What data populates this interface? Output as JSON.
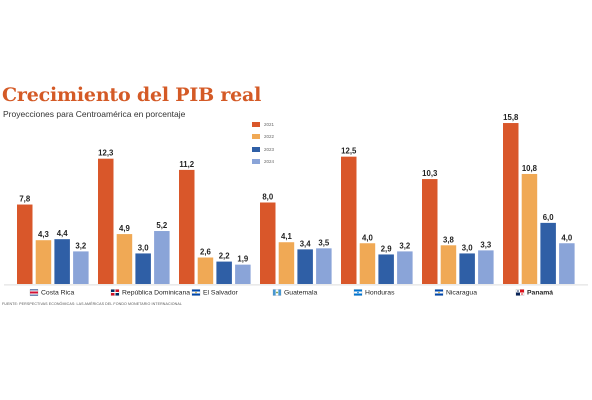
{
  "title": "Crecimiento del PIB real",
  "subtitle": "Proyecciones para Centroamérica en porcentaje",
  "source": "FUENTE: PERSPECTIVAS ECONÓMICAS: LAS AMÉRICAS DEL FONDO MONETARIO INTERNACIONAL",
  "colors": {
    "s2021": "#d9572a",
    "s2022": "#f0a955",
    "s2023": "#2f5fa6",
    "s2024": "#8aa4d8",
    "title": "#d45a26"
  },
  "legend": [
    {
      "label": "2021",
      "color": "#d9572a"
    },
    {
      "label": "2022",
      "color": "#f0a955"
    },
    {
      "label": "2023",
      "color": "#2f5fa6"
    },
    {
      "label": "2024",
      "color": "#8aa4d8"
    }
  ],
  "chart_data": {
    "type": "bar",
    "title": "Crecimiento del PIB real",
    "subtitle": "Proyecciones para Centroamérica en porcentaje",
    "categories": [
      "Costa Rica",
      "República Dominicana",
      "El Salvador",
      "Guatemala",
      "Honduras",
      "Nicaragua",
      "Panamá"
    ],
    "series": [
      {
        "name": "2021",
        "values": [
          7.8,
          12.3,
          11.2,
          8.0,
          12.5,
          10.3,
          15.8
        ]
      },
      {
        "name": "2022",
        "values": [
          4.3,
          4.9,
          2.6,
          4.1,
          4.0,
          3.8,
          10.8
        ]
      },
      {
        "name": "2023",
        "values": [
          4.4,
          3.0,
          2.2,
          3.4,
          2.9,
          3.0,
          6.0
        ]
      },
      {
        "name": "2024",
        "values": [
          3.2,
          5.2,
          1.9,
          3.5,
          3.2,
          3.3,
          4.0
        ]
      }
    ],
    "value_labels": [
      [
        "7,8",
        "12,3",
        "11,2",
        "8,0",
        "12,5",
        "10,3",
        "15,8"
      ],
      [
        "4,3",
        "4,9",
        "2,6",
        "4,1",
        "4,0",
        "3,8",
        "10,8"
      ],
      [
        "4,4",
        "3,0",
        "2,2",
        "3,4",
        "2,9",
        "3,0",
        "6,0"
      ],
      [
        "3,2",
        "5,2",
        "1,9",
        "3,5",
        "3,2",
        "3,3",
        "4,0"
      ]
    ],
    "ylim": [
      0,
      16
    ],
    "grid": false,
    "legend_position": "top-center",
    "flag_icons": [
      "costa-rica-flag-icon",
      "dominican-republic-flag-icon",
      "el-salvador-flag-icon",
      "guatemala-flag-icon",
      "honduras-flag-icon",
      "nicaragua-flag-icon",
      "panama-flag-icon"
    ]
  }
}
